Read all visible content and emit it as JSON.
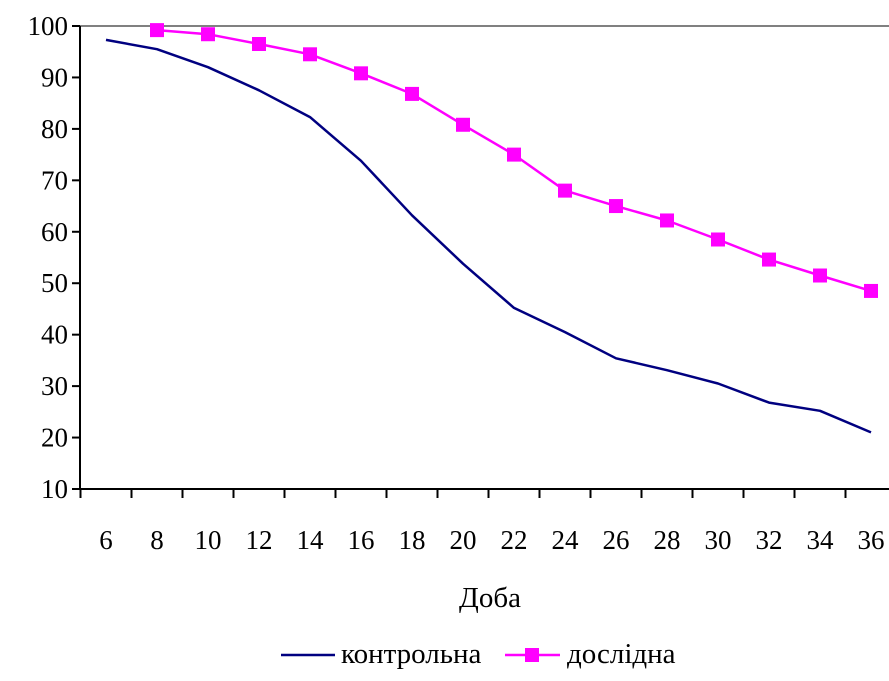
{
  "chart_data": {
    "type": "line",
    "title": "",
    "xlabel": "Доба",
    "ylabel": "",
    "x": [
      6,
      8,
      10,
      12,
      14,
      16,
      18,
      20,
      22,
      24,
      26,
      28,
      30,
      32,
      34,
      36
    ],
    "x_tick_labels": [
      "6",
      "8",
      "10",
      "12",
      "14",
      "16",
      "18",
      "20",
      "22",
      "24",
      "26",
      "28",
      "30",
      "32",
      "34",
      "36"
    ],
    "ylim": [
      10,
      100
    ],
    "y_ticks": [
      10,
      20,
      30,
      40,
      50,
      60,
      70,
      80,
      90,
      100
    ],
    "y_tick_labels": [
      "10",
      "20",
      "30",
      "40",
      "50",
      "60",
      "70",
      "80",
      "90",
      "100"
    ],
    "grid": false,
    "legend_position": "bottom",
    "series": [
      {
        "name": "контрольна",
        "color": "#000080",
        "marker": "none",
        "x": [
          6,
          8,
          10,
          12,
          14,
          16,
          18,
          20,
          22,
          24,
          26,
          28,
          30,
          32,
          34,
          36
        ],
        "values": [
          97.3,
          95.5,
          92,
          87.5,
          82.3,
          73.8,
          63.2,
          53.8,
          45.2,
          40.5,
          35.4,
          33.1,
          30.5,
          26.8,
          25.2,
          21
        ]
      },
      {
        "name": "дослідна",
        "color": "#FF00FF",
        "marker": "square",
        "x": [
          8,
          10,
          12,
          14,
          16,
          18,
          20,
          22,
          24,
          26,
          28,
          30,
          32,
          34,
          36
        ],
        "values": [
          99.2,
          98.4,
          96.5,
          94.5,
          90.8,
          86.8,
          80.8,
          75,
          68,
          65,
          62.2,
          58.5,
          54.6,
          51.5,
          48.5
        ]
      }
    ]
  }
}
